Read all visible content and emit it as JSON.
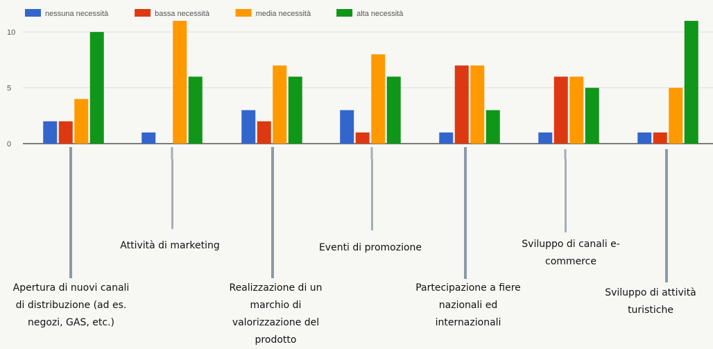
{
  "chart_data": {
    "type": "bar",
    "categories": [
      "Apertura di nuovi canali\ndi distribuzione (ad es.\nnegozi, GAS, etc.)",
      "Attività di marketing",
      "Realizzazione di un\nmarchio di\nvalorizzazione del\nprodotto",
      "Eventi di promozione",
      "Partecipazione a fiere\nnazionali ed\ninternazionali",
      "Sviluppo di canali e-\ncommerce",
      "Sviluppo di attività\nturistiche"
    ],
    "series": [
      {
        "name": "nessuna necessità",
        "color": "#3366cc",
        "values": [
          2,
          1,
          3,
          3,
          1,
          1,
          1
        ]
      },
      {
        "name": "bassa necessità",
        "color": "#dc3912",
        "values": [
          2,
          0,
          2,
          1,
          7,
          6,
          1
        ]
      },
      {
        "name": "media necessità",
        "color": "#ff9900",
        "values": [
          4,
          11,
          7,
          8,
          7,
          6,
          5
        ]
      },
      {
        "name": "alta necessità",
        "color": "#109618",
        "values": [
          10,
          6,
          6,
          6,
          3,
          5,
          11
        ]
      }
    ],
    "yticks": [
      0,
      5,
      10
    ],
    "ylim": [
      0,
      11.5
    ],
    "grid": true,
    "legend": "top-left"
  }
}
